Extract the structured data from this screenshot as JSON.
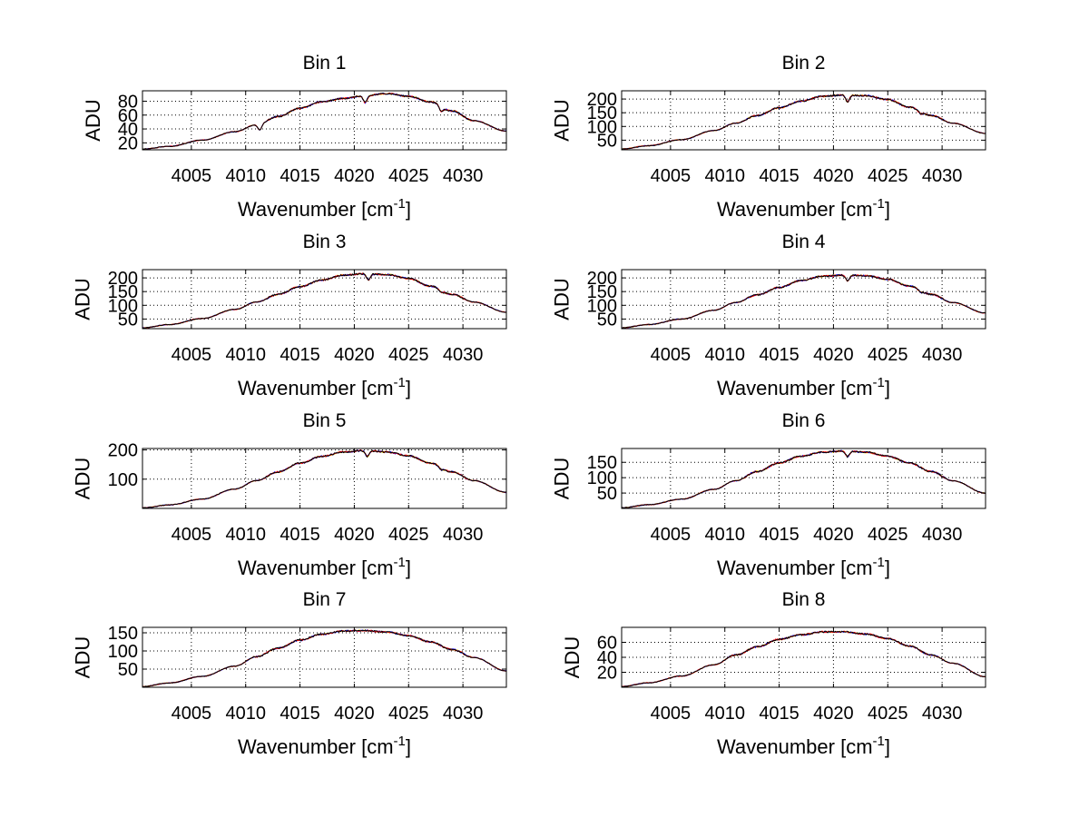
{
  "chart_data": [
    {
      "type": "line",
      "title": "Bin 1",
      "xlabel": "Wavenumber [cm",
      "xlabel_sup": "-1",
      "xlabel_end": "]",
      "ylabel": "ADU",
      "xlim": [
        4000.5,
        4034
      ],
      "ylim": [
        10,
        95
      ],
      "xticks": [
        "4005",
        "4010",
        "4015",
        "4020",
        "4025",
        "4030"
      ],
      "yticks": [
        "20",
        "40",
        "60",
        "80"
      ],
      "x": [
        4000.5,
        4003,
        4006,
        4009,
        4011,
        4013,
        4015,
        4017,
        4019,
        4021,
        4023,
        4025,
        4027,
        4029,
        4031,
        4034
      ],
      "y": [
        11,
        15,
        24,
        36,
        46,
        58,
        70,
        79,
        84,
        88,
        91,
        87,
        79,
        66,
        52,
        37
      ],
      "dips": [
        [
          4011.3,
          8
        ],
        [
          4021.0,
          10
        ],
        [
          4028.0,
          7
        ]
      ],
      "series": [
        {
          "name": "",
          "color": "#0000ff"
        },
        {
          "name": "",
          "color": "#ff0000"
        },
        {
          "name": "",
          "color": "#ffcc00"
        },
        {
          "name": "",
          "color": "#000000"
        }
      ]
    },
    {
      "type": "line",
      "title": "Bin 2",
      "xlabel": "Wavenumber [cm",
      "xlabel_sup": "-1",
      "xlabel_end": "]",
      "ylabel": "ADU",
      "xlim": [
        4000.5,
        4034
      ],
      "ylim": [
        15,
        230
      ],
      "xticks": [
        "4005",
        "4010",
        "4015",
        "4020",
        "4025",
        "4030"
      ],
      "yticks": [
        "50",
        "100",
        "150",
        "200"
      ],
      "x": [
        4000.5,
        4003,
        4006,
        4009,
        4011,
        4013,
        4015,
        4017,
        4019,
        4021,
        4023,
        4025,
        4027,
        4029,
        4031,
        4034
      ],
      "y": [
        18,
        30,
        52,
        85,
        112,
        140,
        168,
        192,
        210,
        215,
        212,
        198,
        170,
        140,
        112,
        75
      ],
      "dips": [
        [
          4021.3,
          25
        ],
        [
          4028.0,
          8
        ]
      ],
      "series": [
        {
          "name": "",
          "color": "#0000ff"
        },
        {
          "name": "",
          "color": "#ff0000"
        },
        {
          "name": "",
          "color": "#ffcc00"
        },
        {
          "name": "",
          "color": "#000000"
        }
      ]
    },
    {
      "type": "line",
      "title": "Bin 3",
      "xlabel": "Wavenumber [cm",
      "xlabel_sup": "-1",
      "xlabel_end": "]",
      "ylabel": "ADU",
      "xlim": [
        4000.5,
        4034
      ],
      "ylim": [
        15,
        230
      ],
      "xticks": [
        "4005",
        "4010",
        "4015",
        "4020",
        "4025",
        "4030"
      ],
      "yticks": [
        "50",
        "100",
        "150",
        "200"
      ],
      "x": [
        4000.5,
        4003,
        4006,
        4009,
        4011,
        4013,
        4015,
        4017,
        4019,
        4021,
        4023,
        4025,
        4027,
        4029,
        4031,
        4034
      ],
      "y": [
        18,
        30,
        52,
        85,
        112,
        140,
        168,
        192,
        210,
        215,
        212,
        198,
        170,
        140,
        112,
        75
      ],
      "dips": [
        [
          4021.3,
          22
        ],
        [
          4028.0,
          8
        ]
      ],
      "series": [
        {
          "name": "",
          "color": "#0000ff"
        },
        {
          "name": "",
          "color": "#ff0000"
        },
        {
          "name": "",
          "color": "#ffcc00"
        },
        {
          "name": "",
          "color": "#000000"
        }
      ]
    },
    {
      "type": "line",
      "title": "Bin 4",
      "xlabel": "Wavenumber [cm",
      "xlabel_sup": "-1",
      "xlabel_end": "]",
      "ylabel": "ADU",
      "xlim": [
        4000.5,
        4034
      ],
      "ylim": [
        15,
        230
      ],
      "xticks": [
        "4005",
        "4010",
        "4015",
        "4020",
        "4025",
        "4030"
      ],
      "yticks": [
        "50",
        "100",
        "150",
        "200"
      ],
      "x": [
        4000.5,
        4003,
        4006,
        4009,
        4011,
        4013,
        4015,
        4017,
        4019,
        4021,
        4023,
        4025,
        4027,
        4029,
        4031,
        4034
      ],
      "y": [
        18,
        30,
        50,
        82,
        110,
        138,
        165,
        190,
        206,
        210,
        208,
        195,
        170,
        140,
        110,
        72
      ],
      "dips": [
        [
          4021.3,
          20
        ],
        [
          4028.0,
          7
        ]
      ],
      "series": [
        {
          "name": "",
          "color": "#0000ff"
        },
        {
          "name": "",
          "color": "#ff0000"
        },
        {
          "name": "",
          "color": "#ffcc00"
        },
        {
          "name": "",
          "color": "#000000"
        }
      ]
    },
    {
      "type": "line",
      "title": "Bin 5",
      "xlabel": "Wavenumber [cm",
      "xlabel_sup": "-1",
      "xlabel_end": "]",
      "ylabel": "ADU",
      "xlim": [
        4000.5,
        4034
      ],
      "ylim": [
        0,
        205
      ],
      "xticks": [
        "4005",
        "4010",
        "4015",
        "4020",
        "4025",
        "4030"
      ],
      "yticks": [
        "100",
        "200"
      ],
      "x": [
        4000.5,
        4003,
        4006,
        4009,
        4011,
        4013,
        4015,
        4017,
        4019,
        4021,
        4023,
        4025,
        4027,
        4029,
        4031,
        4034
      ],
      "y": [
        2,
        12,
        32,
        66,
        95,
        125,
        155,
        178,
        193,
        198,
        193,
        180,
        155,
        125,
        95,
        55
      ],
      "dips": [
        [
          4021.2,
          20
        ],
        [
          4028.0,
          7
        ]
      ],
      "series": [
        {
          "name": "",
          "color": "#0000ff"
        },
        {
          "name": "",
          "color": "#ff0000"
        },
        {
          "name": "",
          "color": "#ffcc00"
        },
        {
          "name": "",
          "color": "#000000"
        }
      ]
    },
    {
      "type": "line",
      "title": "Bin 6",
      "xlabel": "Wavenumber [cm",
      "xlabel_sup": "-1",
      "xlabel_end": "]",
      "ylabel": "ADU",
      "xlim": [
        4000.5,
        4034
      ],
      "ylim": [
        0,
        195
      ],
      "xticks": [
        "4005",
        "4010",
        "4015",
        "4020",
        "4025",
        "4030"
      ],
      "yticks": [
        "50",
        "100",
        "150"
      ],
      "x": [
        4000.5,
        4003,
        4006,
        4009,
        4011,
        4013,
        4015,
        4017,
        4019,
        4021,
        4023,
        4025,
        4027,
        4029,
        4031,
        4034
      ],
      "y": [
        2,
        12,
        30,
        62,
        90,
        120,
        148,
        170,
        183,
        187,
        183,
        170,
        148,
        120,
        90,
        50
      ],
      "dips": [
        [
          4021.3,
          18
        ]
      ],
      "series": [
        {
          "name": "",
          "color": "#0000ff"
        },
        {
          "name": "",
          "color": "#ff0000"
        },
        {
          "name": "",
          "color": "#ffcc00"
        },
        {
          "name": "",
          "color": "#000000"
        }
      ]
    },
    {
      "type": "line",
      "title": "Bin 7",
      "xlabel": "Wavenumber [cm",
      "xlabel_sup": "-1",
      "xlabel_end": "]",
      "ylabel": "ADU",
      "xlim": [
        4000.5,
        4034
      ],
      "ylim": [
        0,
        165
      ],
      "xticks": [
        "4005",
        "4010",
        "4015",
        "4020",
        "4025",
        "4030"
      ],
      "yticks": [
        "50",
        "100",
        "150"
      ],
      "x": [
        4000.5,
        4003,
        4006,
        4009,
        4011,
        4013,
        4015,
        4017,
        4019,
        4021,
        4023,
        4025,
        4027,
        4029,
        4031,
        4034
      ],
      "y": [
        2,
        12,
        30,
        58,
        84,
        108,
        130,
        146,
        155,
        156,
        152,
        142,
        125,
        104,
        82,
        45
      ],
      "dips": [],
      "series": [
        {
          "name": "",
          "color": "#0000ff"
        },
        {
          "name": "",
          "color": "#ff0000"
        },
        {
          "name": "",
          "color": "#ffcc00"
        },
        {
          "name": "",
          "color": "#000000"
        }
      ]
    },
    {
      "type": "line",
      "title": "Bin 8",
      "xlabel": "Wavenumber [cm",
      "xlabel_sup": "-1",
      "xlabel_end": "]",
      "ylabel": "ADU",
      "xlim": [
        4000.5,
        4034
      ],
      "ylim": [
        0,
        80
      ],
      "xticks": [
        "4005",
        "4010",
        "4015",
        "4020",
        "4025",
        "4030"
      ],
      "yticks": [
        "20",
        "40",
        "60"
      ],
      "x": [
        4000.5,
        4003,
        4006,
        4009,
        4011,
        4013,
        4015,
        4017,
        4019,
        4021,
        4023,
        4025,
        4027,
        4029,
        4031,
        4034
      ],
      "y": [
        1,
        6,
        15,
        30,
        43,
        54,
        64,
        70,
        74,
        74,
        71,
        65,
        55,
        43,
        32,
        14
      ],
      "dips": [],
      "series": [
        {
          "name": "",
          "color": "#0000ff"
        },
        {
          "name": "",
          "color": "#ff0000"
        },
        {
          "name": "",
          "color": "#ffcc00"
        },
        {
          "name": "",
          "color": "#000000"
        }
      ]
    }
  ]
}
